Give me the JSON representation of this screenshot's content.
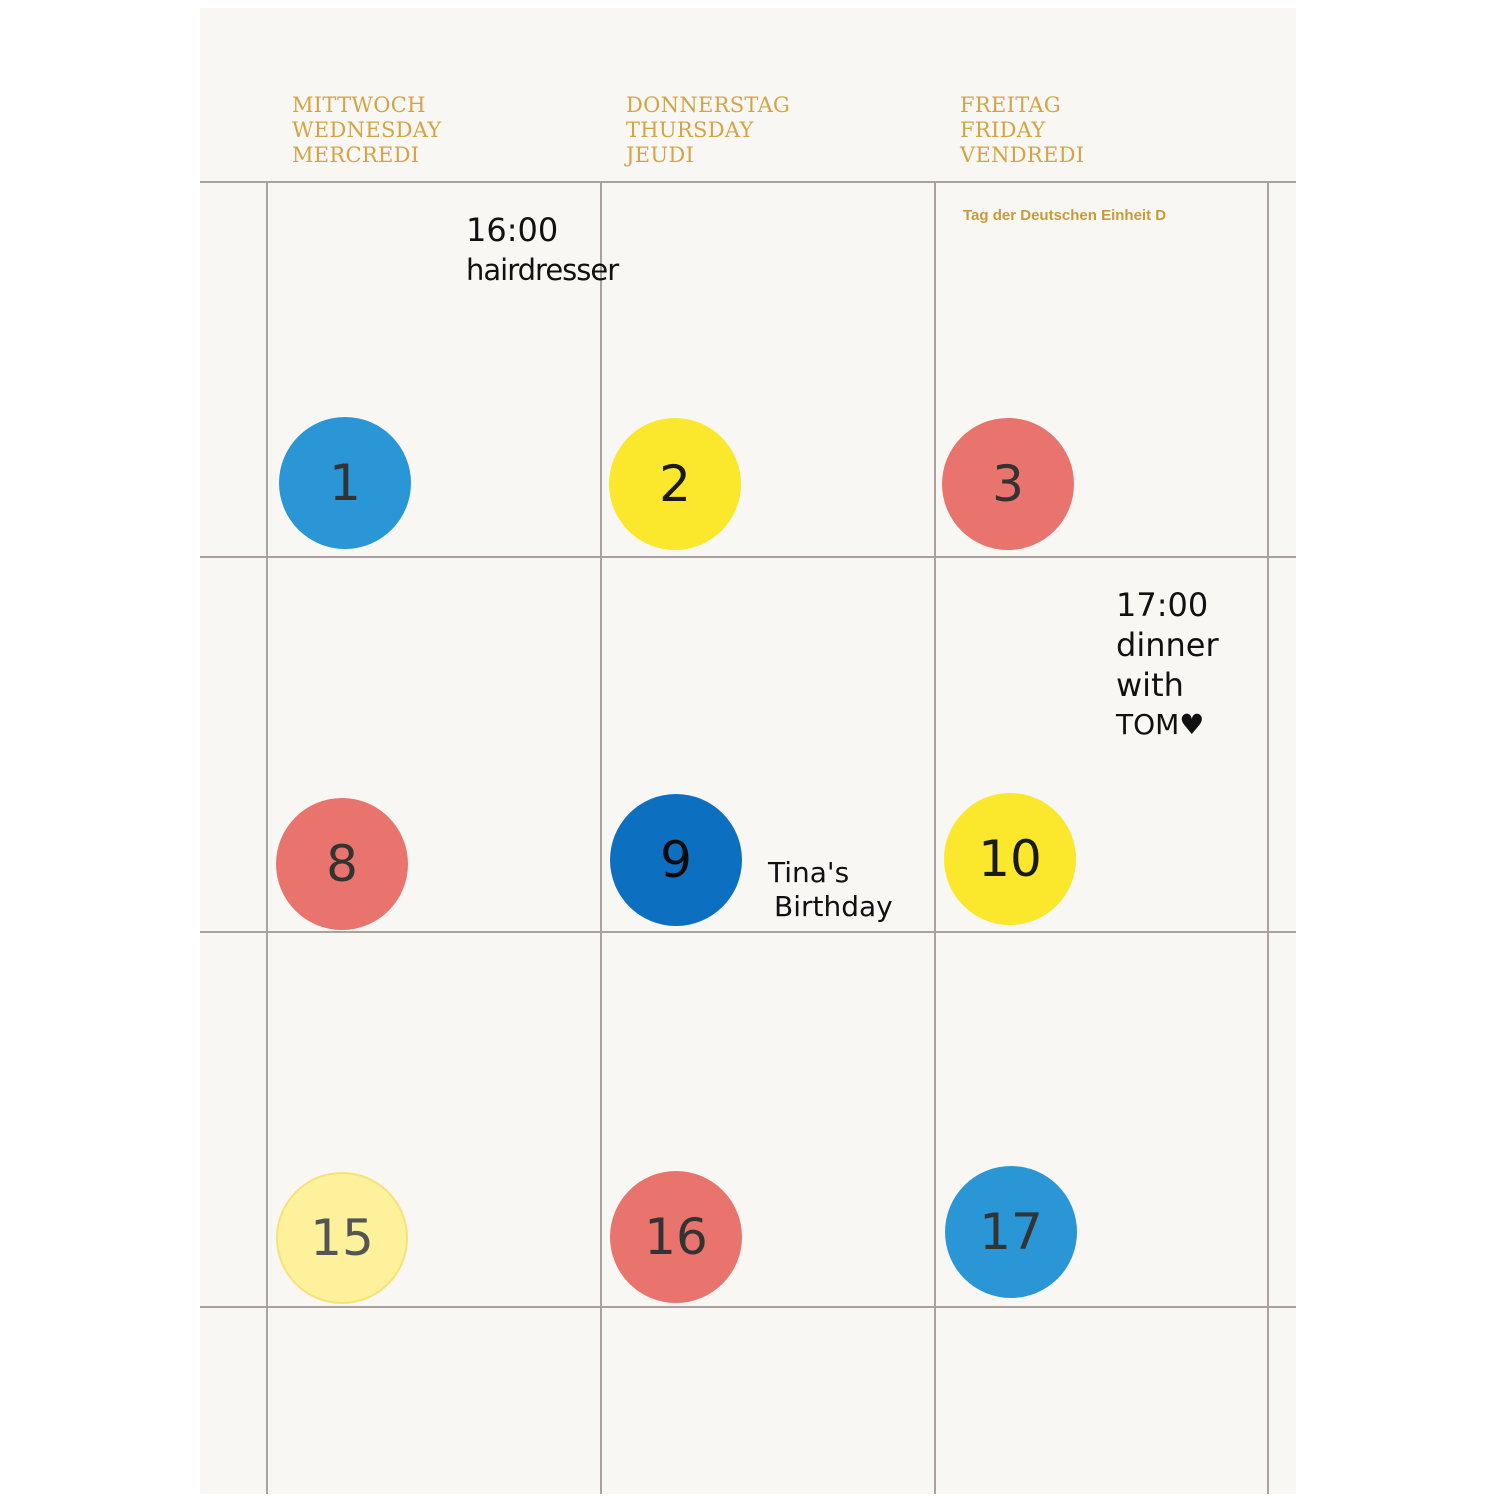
{
  "headers": [
    {
      "de": "MITTWOCH",
      "en": "WEDNESDAY",
      "fr": "MERCREDI"
    },
    {
      "de": "DONNERSTAG",
      "en": "THURSDAY",
      "fr": "JEUDI"
    },
    {
      "de": "FREITAG",
      "en": "FRIDAY",
      "fr": "VENDREDI"
    }
  ],
  "holiday": "Tag der Deutschen Einheit D",
  "colors": {
    "blue": "#2a96d6",
    "yellow": "#fbe72c",
    "red": "#e9736d",
    "dark_blue": "#0c6fc0",
    "pale_yellow": "#fdf29b",
    "header_gold": "#d3a445"
  },
  "stickers": [
    {
      "label": "1",
      "color": "blue"
    },
    {
      "label": "2",
      "color": "yellow"
    },
    {
      "label": "3",
      "color": "red"
    },
    {
      "label": "8",
      "color": "red"
    },
    {
      "label": "9",
      "color": "dark_blue"
    },
    {
      "label": "10",
      "color": "yellow"
    },
    {
      "label": "15",
      "color": "pale_yellow"
    },
    {
      "label": "16",
      "color": "red"
    },
    {
      "label": "17",
      "color": "blue"
    }
  ],
  "notes": {
    "hairdresser": {
      "time": "16:00",
      "text": "hairdresser"
    },
    "dinner": {
      "time": "17:00",
      "line1": "dinner",
      "line2": "with",
      "line3": "TOM♥"
    },
    "birthday": {
      "line1": "Tina's",
      "line2": "Birthday"
    }
  }
}
